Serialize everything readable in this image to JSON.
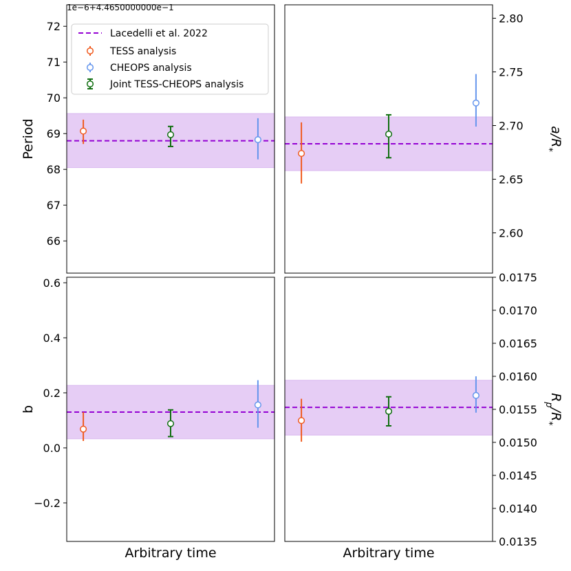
{
  "chart_data": {
    "type": "errorbar-panels",
    "series_styles": [
      {
        "name": "TESS analysis",
        "color": "#f05a1e"
      },
      {
        "name": "CHEOPS analysis",
        "color": "#6495ed"
      },
      {
        "name": "Joint TESS-CHEOPS analysis",
        "color": "#0f6e0f"
      }
    ],
    "reference": {
      "name": "Lacedelli et al. 2022",
      "color": "#9400d3",
      "band_color": "#e6cdf5"
    },
    "legend": {
      "position": "top-left",
      "entries": [
        "Lacedelli et al. 2022",
        "TESS analysis",
        "CHEOPS analysis",
        "Joint TESS-CHEOPS analysis"
      ]
    },
    "panels": [
      {
        "id": "period",
        "ylabel": "Period",
        "ylabel_side": "left",
        "offset_text": "1e−6+4.4650000000e−1",
        "ylim": [
          65.1,
          72.6
        ],
        "ticks": [
          66,
          67,
          68,
          69,
          70,
          71,
          72
        ],
        "tick_labels": [
          "66",
          "67",
          "68",
          "69",
          "70",
          "71",
          "72"
        ],
        "xlabel": "",
        "reference": {
          "value": 68.8,
          "band": [
            68.05,
            69.56
          ]
        },
        "points": [
          {
            "series": 0,
            "x": 0.05,
            "y": 69.07,
            "err_low": 0.36,
            "err_high": 0.32
          },
          {
            "series": 2,
            "x": 0.5,
            "y": 68.97,
            "err_low": 0.33,
            "err_high": 0.23
          },
          {
            "series": 1,
            "x": 0.95,
            "y": 68.83,
            "err_low": 0.55,
            "err_high": 0.6
          }
        ]
      },
      {
        "id": "a_over_rstar",
        "ylabel": "a/R",
        "ylabel_sub": "*",
        "ylabel_side": "right",
        "ylim": [
          2.5625,
          2.8125
        ],
        "ticks": [
          2.6,
          2.65,
          2.7,
          2.75,
          2.8
        ],
        "tick_labels": [
          "2.60",
          "2.65",
          "2.70",
          "2.75",
          "2.80"
        ],
        "xlabel": "",
        "reference": {
          "value": 2.683,
          "band": [
            2.658,
            2.708
          ]
        },
        "points": [
          {
            "series": 0,
            "x": 0.05,
            "y": 2.674,
            "err_low": 0.028,
            "err_high": 0.029
          },
          {
            "series": 2,
            "x": 0.5,
            "y": 2.692,
            "err_low": 0.022,
            "err_high": 0.018
          },
          {
            "series": 1,
            "x": 0.95,
            "y": 2.721,
            "err_low": 0.022,
            "err_high": 0.027
          }
        ]
      },
      {
        "id": "b",
        "ylabel": "b",
        "ylabel_side": "left",
        "ylim": [
          -0.34,
          0.62
        ],
        "ticks": [
          -0.2,
          0.0,
          0.2,
          0.4,
          0.6
        ],
        "tick_labels": [
          "−0.2",
          "0.0",
          "0.2",
          "0.4",
          "0.6"
        ],
        "xlabel": "Arbitrary time",
        "reference": {
          "value": 0.13,
          "band": [
            0.033,
            0.227
          ]
        },
        "points": [
          {
            "series": 0,
            "x": 0.05,
            "y": 0.068,
            "err_low": 0.043,
            "err_high": 0.062
          },
          {
            "series": 2,
            "x": 0.5,
            "y": 0.088,
            "err_low": 0.047,
            "err_high": 0.05
          },
          {
            "series": 1,
            "x": 0.95,
            "y": 0.156,
            "err_low": 0.083,
            "err_high": 0.09
          }
        ]
      },
      {
        "id": "rp_over_rstar",
        "ylabel": "R",
        "ylabel_sub_p": "p",
        "ylabel_tail": "/R",
        "ylabel_sub": "*",
        "ylabel_side": "right",
        "ylim": [
          0.0135,
          0.0175
        ],
        "ticks": [
          0.0135,
          0.014,
          0.0145,
          0.015,
          0.0155,
          0.016,
          0.0165,
          0.017,
          0.0175
        ],
        "tick_labels": [
          "0.0135",
          "0.0140",
          "0.0145",
          "0.0150",
          "0.0155",
          "0.0160",
          "0.0165",
          "0.0170",
          "0.0175"
        ],
        "xlabel": "Arbitrary time",
        "reference": {
          "value": 0.01553,
          "band": [
            0.01511,
            0.01594
          ]
        },
        "points": [
          {
            "series": 0,
            "x": 0.05,
            "y": 0.01533,
            "err_low": 0.00032,
            "err_high": 0.00033
          },
          {
            "series": 2,
            "x": 0.5,
            "y": 0.01547,
            "err_low": 0.00022,
            "err_high": 0.00022
          },
          {
            "series": 1,
            "x": 0.95,
            "y": 0.01571,
            "err_low": 0.00026,
            "err_high": 0.00029
          }
        ]
      }
    ]
  }
}
